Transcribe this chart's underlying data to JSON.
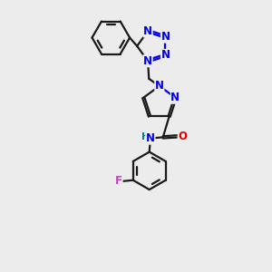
{
  "bg_color": "#ececec",
  "bond_color": "#1a1a1a",
  "N_color": "#0000ee",
  "O_color": "#dd0000",
  "F_color": "#bb44bb",
  "H_color": "#008080",
  "line_width": 1.6,
  "font_size": 8.5,
  "xlim": [
    0,
    10
  ],
  "ylim": [
    0,
    13
  ]
}
